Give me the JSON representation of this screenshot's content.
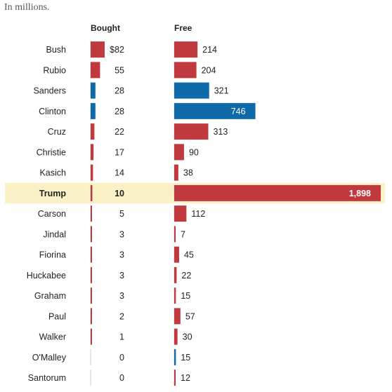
{
  "note": "In millions.",
  "chart_data": {
    "type": "bar",
    "column_headers": [
      "Bought",
      "Free"
    ],
    "highlight": "Trump",
    "colors": {
      "republican": "#c0393f",
      "democrat": "#0e6aa8",
      "highlight_bg": "#fbf1c7"
    },
    "rows": [
      {
        "name": "Bush",
        "party": "R",
        "bought": 82,
        "bought_label": "$82",
        "free": 214,
        "free_label": "214"
      },
      {
        "name": "Rubio",
        "party": "R",
        "bought": 55,
        "bought_label": "55",
        "free": 204,
        "free_label": "204"
      },
      {
        "name": "Sanders",
        "party": "D",
        "bought": 28,
        "bought_label": "28",
        "free": 321,
        "free_label": "321"
      },
      {
        "name": "Clinton",
        "party": "D",
        "bought": 28,
        "bought_label": "28",
        "free": 746,
        "free_label": "746"
      },
      {
        "name": "Cruz",
        "party": "R",
        "bought": 22,
        "bought_label": "22",
        "free": 313,
        "free_label": "313"
      },
      {
        "name": "Christie",
        "party": "R",
        "bought": 17,
        "bought_label": "17",
        "free": 90,
        "free_label": "90"
      },
      {
        "name": "Kasich",
        "party": "R",
        "bought": 14,
        "bought_label": "14",
        "free": 38,
        "free_label": "38"
      },
      {
        "name": "Trump",
        "party": "R",
        "bought": 10,
        "bought_label": "10",
        "free": 1898,
        "free_label": "1,898"
      },
      {
        "name": "Carson",
        "party": "R",
        "bought": 5,
        "bought_label": "5",
        "free": 112,
        "free_label": "112"
      },
      {
        "name": "Jindal",
        "party": "R",
        "bought": 3,
        "bought_label": "3",
        "free": 7,
        "free_label": "7"
      },
      {
        "name": "Fiorina",
        "party": "R",
        "bought": 3,
        "bought_label": "3",
        "free": 45,
        "free_label": "45"
      },
      {
        "name": "Huckabee",
        "party": "R",
        "bought": 3,
        "bought_label": "3",
        "free": 22,
        "free_label": "22"
      },
      {
        "name": "Graham",
        "party": "R",
        "bought": 3,
        "bought_label": "3",
        "free": 15,
        "free_label": "15"
      },
      {
        "name": "Paul",
        "party": "R",
        "bought": 2,
        "bought_label": "2",
        "free": 57,
        "free_label": "57"
      },
      {
        "name": "Walker",
        "party": "R",
        "bought": 1,
        "bought_label": "1",
        "free": 30,
        "free_label": "30"
      },
      {
        "name": "O'Malley",
        "party": "D",
        "bought": 0,
        "bought_label": "0",
        "free": 15,
        "free_label": "15"
      },
      {
        "name": "Santorum",
        "party": "R",
        "bought": 0,
        "bought_label": "0",
        "free": 12,
        "free_label": "12"
      }
    ]
  }
}
